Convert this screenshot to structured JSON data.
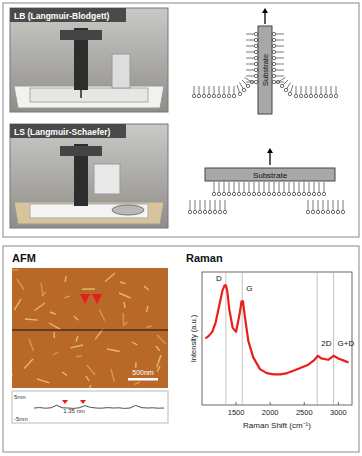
{
  "top_panel": {
    "lb": {
      "label": "LB (Langmuir-Blodgett)",
      "substrate": "Substrate"
    },
    "ls": {
      "label": "LS (Langmuir-Schaefer)",
      "substrate": "Substrate"
    }
  },
  "afm": {
    "title": "AFM",
    "scale_bar": "500nm",
    "profile": {
      "top_label": "5nm",
      "bottom_label": "-5nm",
      "annotation": "1.35 nm",
      "ylim": [
        -5,
        5
      ],
      "values": [
        0,
        0.2,
        -0.1,
        0.1,
        1.4,
        0.1,
        0,
        -0.2,
        0.1,
        1.2,
        0.3,
        0,
        -0.1,
        0.2,
        0,
        0.1,
        -0.2,
        0,
        1.3,
        0.2,
        0,
        0.1,
        -0.1,
        0
      ]
    }
  },
  "chart_data": {
    "type": "line",
    "title": "Raman",
    "x_label": "Raman Shift (cm⁻¹)",
    "y_label": "Intensity (a.u.)",
    "x": [
      1050,
      1100,
      1150,
      1200,
      1250,
      1300,
      1330,
      1350,
      1370,
      1400,
      1450,
      1500,
      1550,
      1580,
      1600,
      1630,
      1680,
      1750,
      1850,
      1950,
      2050,
      2150,
      2250,
      2350,
      2450,
      2550,
      2650,
      2700,
      2750,
      2850,
      2930,
      3000,
      3100,
      3150
    ],
    "series": [
      {
        "color": "#e8201c",
        "values": [
          0.5,
          0.52,
          0.55,
          0.62,
          0.74,
          0.86,
          0.9,
          0.9,
          0.86,
          0.72,
          0.58,
          0.55,
          0.68,
          0.78,
          0.78,
          0.66,
          0.48,
          0.36,
          0.27,
          0.24,
          0.23,
          0.23,
          0.24,
          0.26,
          0.28,
          0.3,
          0.34,
          0.37,
          0.35,
          0.34,
          0.37,
          0.35,
          0.33,
          0.32
        ]
      }
    ],
    "xlim": [
      1000,
      3200
    ],
    "xticks": [
      1500,
      2000,
      2500,
      3000
    ],
    "ylim": [
      0,
      1
    ],
    "tick_labels": "x",
    "annotations": [
      {
        "label": "D",
        "x": 1350
      },
      {
        "label": "G",
        "x": 1590
      },
      {
        "label": "2D",
        "x": 2690
      },
      {
        "label": "G+D",
        "x": 2930
      }
    ]
  }
}
